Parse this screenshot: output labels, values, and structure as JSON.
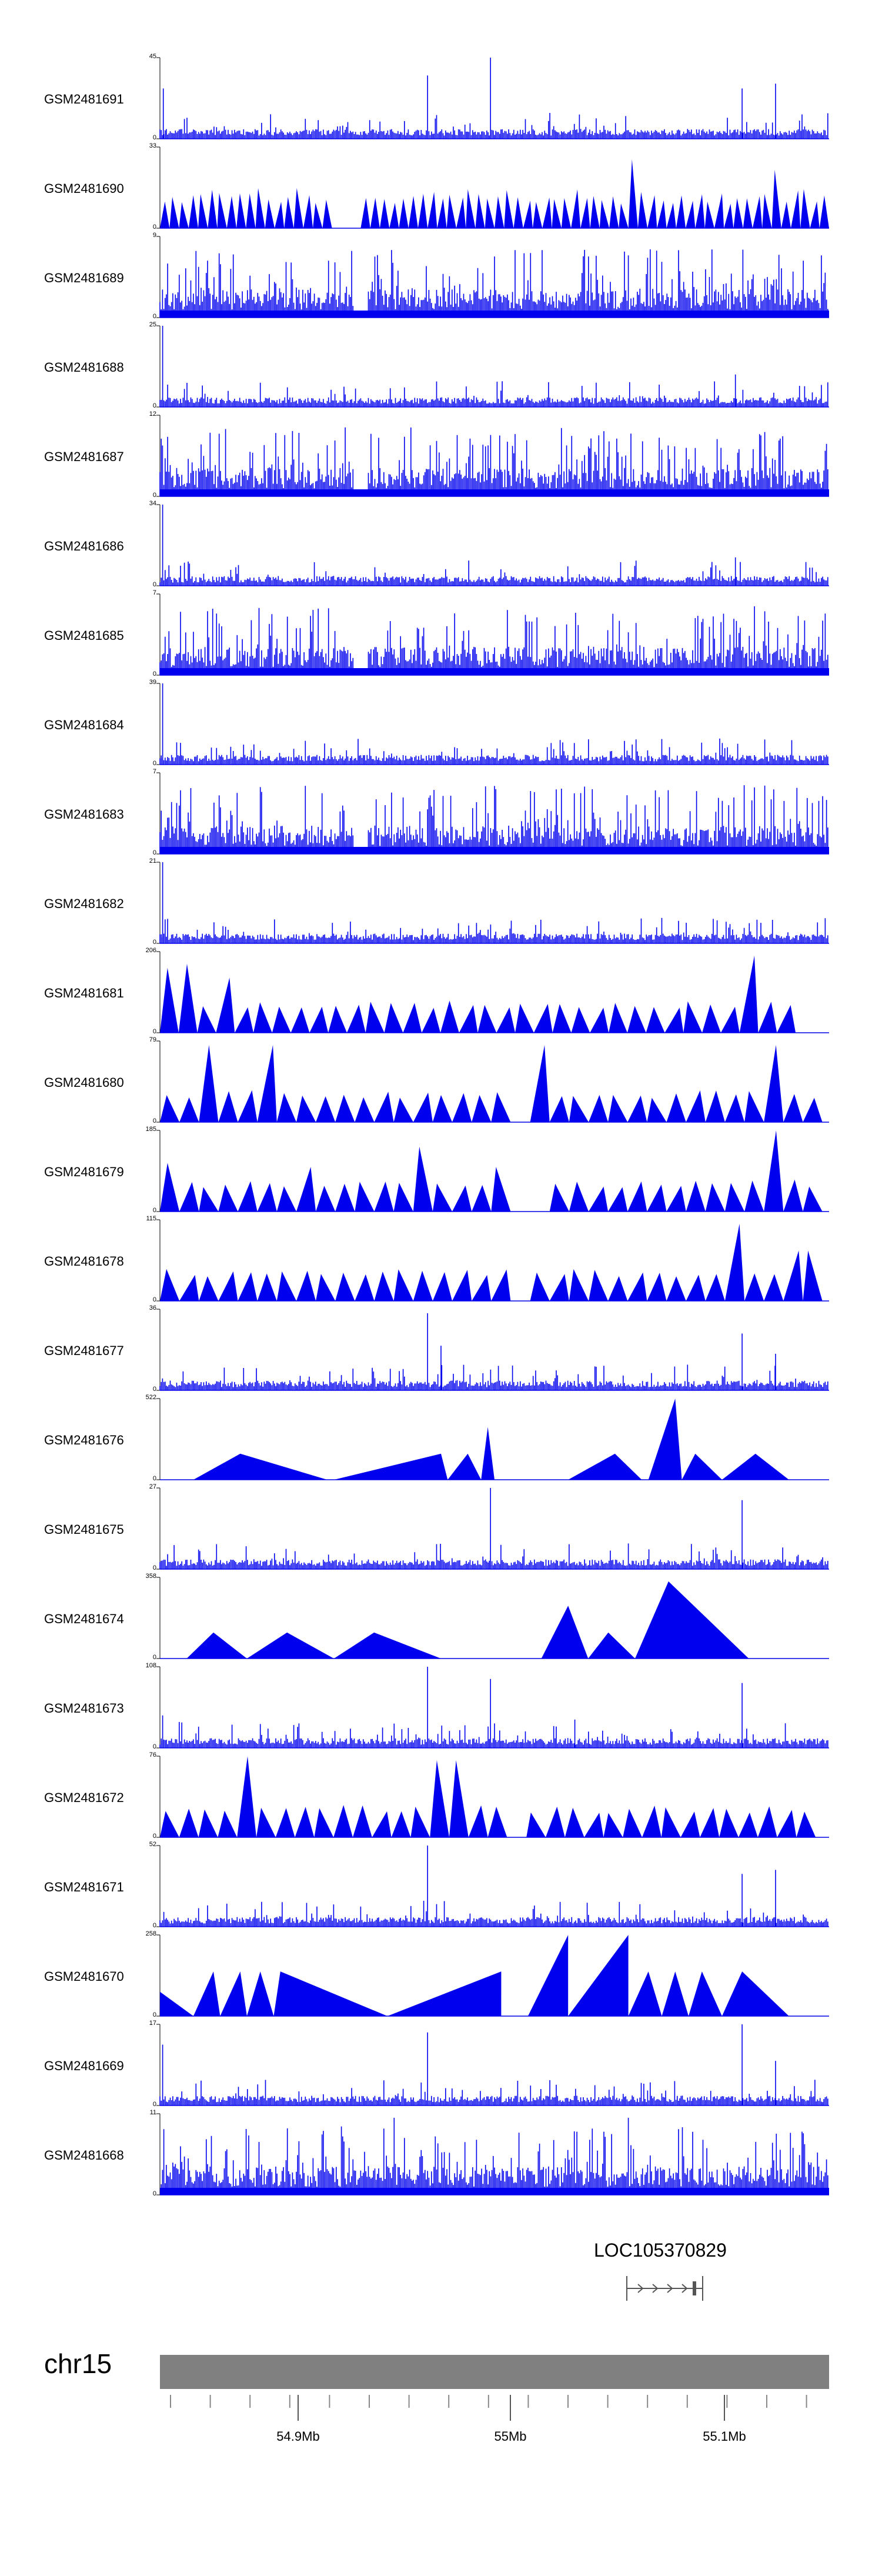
{
  "colors": {
    "signal": "#0000ee",
    "ideogram": "#808080",
    "axis": "#000000"
  },
  "tracks": [
    {
      "id": "GSM2481691",
      "label": "GSM2481691",
      "ymax": "45",
      "ymin": "0",
      "pattern": "sparse",
      "seed": 11,
      "peaks": [
        [
          0.005,
          0.62
        ],
        [
          0.4,
          0.78
        ],
        [
          0.494,
          1.0
        ],
        [
          0.87,
          0.62
        ],
        [
          0.92,
          0.68
        ]
      ]
    },
    {
      "id": "GSM2481690",
      "label": "GSM2481690",
      "ymax": "33",
      "ymin": "0",
      "pattern": "triangles-dense",
      "seed": 12,
      "gap": [
        0.26,
        0.3
      ],
      "peaks": [
        [
          0.7,
          0.85
        ],
        [
          0.92,
          0.72
        ]
      ]
    },
    {
      "id": "GSM2481689",
      "label": "GSM2481689",
      "ymax": "9",
      "ymin": "0",
      "pattern": "dense",
      "seed": 13,
      "gap": [
        0.29,
        0.31
      ]
    },
    {
      "id": "GSM2481688",
      "label": "GSM2481688",
      "ymax": "25",
      "ymin": "0",
      "pattern": "sparse",
      "seed": 14,
      "peaks": [
        [
          0.004,
          1.0
        ],
        [
          0.86,
          0.4
        ]
      ]
    },
    {
      "id": "GSM2481687",
      "label": "GSM2481687",
      "ymax": "12",
      "ymin": "0",
      "pattern": "dense",
      "seed": 15,
      "gap": [
        0.29,
        0.31
      ]
    },
    {
      "id": "GSM2481686",
      "label": "GSM2481686",
      "ymax": "34",
      "ymin": "0",
      "pattern": "sparse",
      "seed": 16,
      "peaks": [
        [
          0.004,
          1.0
        ],
        [
          0.86,
          0.35
        ]
      ]
    },
    {
      "id": "GSM2481685",
      "label": "GSM2481685",
      "ymax": "7",
      "ymin": "0",
      "pattern": "dense",
      "seed": 17,
      "gap": [
        0.29,
        0.31
      ]
    },
    {
      "id": "GSM2481684",
      "label": "GSM2481684",
      "ymax": "39",
      "ymin": "0",
      "pattern": "sparse",
      "seed": 18,
      "peaks": [
        [
          0.004,
          1.0
        ]
      ]
    },
    {
      "id": "GSM2481683",
      "label": "GSM2481683",
      "ymax": "7",
      "ymin": "0",
      "pattern": "dense",
      "seed": 19,
      "gap": [
        0.29,
        0.31
      ]
    },
    {
      "id": "GSM2481682",
      "label": "GSM2481682",
      "ymax": "21",
      "ymin": "0",
      "pattern": "sparse",
      "seed": 20,
      "peaks": [
        [
          0.004,
          1.0
        ]
      ]
    },
    {
      "id": "GSM2481681",
      "label": "GSM2481681",
      "ymax": "206",
      "ymin": "0",
      "pattern": "triangles",
      "seed": 21,
      "range": [
        0.0,
        0.95
      ],
      "gap": [
        0.52,
        0.54
      ],
      "peaks": [
        [
          0.004,
          0.8
        ],
        [
          0.05,
          0.85
        ],
        [
          0.1,
          0.68
        ],
        [
          0.87,
          0.95
        ]
      ]
    },
    {
      "id": "GSM2481680",
      "label": "GSM2481680",
      "ymax": "79",
      "ymin": "0",
      "pattern": "triangles",
      "seed": 22,
      "range": [
        0.0,
        0.99
      ],
      "gap": [
        0.53,
        0.54
      ],
      "peaks": [
        [
          0.06,
          0.95
        ],
        [
          0.16,
          0.95
        ],
        [
          0.57,
          0.95
        ],
        [
          0.93,
          0.95
        ]
      ]
    },
    {
      "id": "GSM2481679",
      "label": "GSM2481679",
      "ymax": "185",
      "ymin": "0",
      "pattern": "triangles",
      "seed": 23,
      "range": [
        0.0,
        0.99
      ],
      "gap": [
        0.51,
        0.58
      ],
      "peaks": [
        [
          0.02,
          0.6
        ],
        [
          0.23,
          0.55
        ],
        [
          0.4,
          0.8
        ],
        [
          0.5,
          0.55
        ],
        [
          0.93,
          1.0
        ]
      ]
    },
    {
      "id": "GSM2481678",
      "label": "GSM2481678",
      "ymax": "115",
      "ymin": "0",
      "pattern": "triangles",
      "seed": 24,
      "range": [
        0.0,
        0.99
      ],
      "gap": [
        0.51,
        0.55
      ],
      "peaks": [
        [
          0.86,
          0.95
        ],
        [
          0.95,
          0.62
        ],
        [
          0.98,
          0.62
        ]
      ]
    },
    {
      "id": "GSM2481677",
      "label": "GSM2481677",
      "ymax": "36",
      "ymin": "0",
      "pattern": "sparse",
      "seed": 25,
      "peaks": [
        [
          0.4,
          0.95
        ],
        [
          0.42,
          0.55
        ],
        [
          0.87,
          0.7
        ],
        [
          0.92,
          0.45
        ]
      ]
    },
    {
      "id": "GSM2481676",
      "label": "GSM2481676",
      "ymax": "522",
      "ymin": "0",
      "pattern": "blocks",
      "seed": 26,
      "tris": [
        [
          0.05,
          0.25,
          0.12,
          0.32
        ],
        [
          0.26,
          0.43,
          0.42,
          0.32
        ],
        [
          0.43,
          0.48,
          0.46,
          0.32
        ],
        [
          0.48,
          0.5,
          0.49,
          0.65
        ],
        [
          0.61,
          0.72,
          0.68,
          0.32
        ],
        [
          0.73,
          0.78,
          0.77,
          1.0
        ],
        [
          0.78,
          0.84,
          0.8,
          0.32
        ],
        [
          0.84,
          0.94,
          0.89,
          0.32
        ]
      ]
    },
    {
      "id": "GSM2481675",
      "label": "GSM2481675",
      "ymax": "27",
      "ymin": "0",
      "pattern": "sparse",
      "seed": 27,
      "peaks": [
        [
          0.494,
          1.0
        ],
        [
          0.87,
          0.85
        ]
      ]
    },
    {
      "id": "GSM2481674",
      "label": "GSM2481674",
      "ymax": "358",
      "ymin": "0",
      "pattern": "blocks",
      "seed": 28,
      "tris": [
        [
          0.04,
          0.13,
          0.08,
          0.32
        ],
        [
          0.13,
          0.26,
          0.19,
          0.32
        ],
        [
          0.26,
          0.42,
          0.32,
          0.32
        ],
        [
          0.57,
          0.64,
          0.61,
          0.65
        ],
        [
          0.64,
          0.71,
          0.67,
          0.32
        ],
        [
          0.71,
          0.88,
          0.76,
          0.95
        ]
      ]
    },
    {
      "id": "GSM2481673",
      "label": "GSM2481673",
      "ymax": "108",
      "ymin": "0",
      "pattern": "sparse",
      "seed": 29,
      "peaks": [
        [
          0.004,
          0.4
        ],
        [
          0.4,
          1.0
        ],
        [
          0.494,
          0.85
        ],
        [
          0.62,
          0.35
        ],
        [
          0.87,
          0.8
        ]
      ]
    },
    {
      "id": "GSM2481672",
      "label": "GSM2481672",
      "ymax": "76",
      "ymin": "0",
      "pattern": "triangles",
      "seed": 30,
      "range": [
        0.0,
        0.98
      ],
      "gap": [
        0.52,
        0.54
      ],
      "peaks": [
        [
          0.13,
          1.0
        ],
        [
          0.41,
          0.95
        ],
        [
          0.46,
          0.95
        ]
      ]
    },
    {
      "id": "GSM2481671",
      "label": "GSM2481671",
      "ymax": "52",
      "ymin": "0",
      "pattern": "sparse",
      "seed": 31,
      "peaks": [
        [
          0.4,
          1.0
        ],
        [
          0.87,
          0.65
        ],
        [
          0.92,
          0.7
        ]
      ]
    },
    {
      "id": "GSM2481670",
      "label": "GSM2481670",
      "ymax": "258",
      "ymin": "0",
      "pattern": "blocks",
      "seed": 32,
      "tris": [
        [
          0.0,
          0.05,
          0.0,
          0.3
        ],
        [
          0.05,
          0.09,
          0.08,
          0.55
        ],
        [
          0.09,
          0.13,
          0.12,
          0.55
        ],
        [
          0.13,
          0.17,
          0.15,
          0.55
        ],
        [
          0.17,
          0.34,
          0.18,
          0.55
        ],
        [
          0.34,
          0.51,
          0.51,
          0.55
        ],
        [
          0.55,
          0.61,
          0.61,
          1.0
        ],
        [
          0.61,
          0.7,
          0.7,
          1.0
        ],
        [
          0.7,
          0.75,
          0.73,
          0.55
        ],
        [
          0.75,
          0.79,
          0.77,
          0.55
        ],
        [
          0.79,
          0.84,
          0.81,
          0.55
        ],
        [
          0.84,
          0.94,
          0.87,
          0.55
        ]
      ]
    },
    {
      "id": "GSM2481669",
      "label": "GSM2481669",
      "ymax": "17",
      "ymin": "0",
      "pattern": "sparse",
      "seed": 33,
      "peaks": [
        [
          0.004,
          0.75
        ],
        [
          0.4,
          0.9
        ],
        [
          0.87,
          1.0
        ],
        [
          0.92,
          0.55
        ]
      ]
    },
    {
      "id": "GSM2481668",
      "label": "GSM2481668",
      "ymax": "11",
      "ymin": "0",
      "pattern": "dense",
      "seed": 34,
      "gap": [
        0.0,
        0.0
      ],
      "peaks": [
        [
          0.35,
          0.95
        ],
        [
          0.7,
          0.95
        ]
      ]
    }
  ],
  "gene": {
    "name": "LOC105370829"
  },
  "chromosome": {
    "label": "chr15"
  },
  "axis": {
    "ticks": [
      {
        "label": "54.9Mb",
        "show_label": true
      },
      {
        "label": "55Mb",
        "show_label": true
      },
      {
        "label": "55.1Mb",
        "show_label": true
      }
    ]
  },
  "chart_data": {
    "type": "area",
    "title": "",
    "xlabel": "",
    "ylabel": "",
    "x_ticks": [
      "54.9Mb",
      "55Mb",
      "55.1Mb"
    ],
    "chromosome": "chr15",
    "gene_annotation": "LOC105370829",
    "series": [
      {
        "name": "GSM2481691",
        "ylim": [
          0,
          45
        ]
      },
      {
        "name": "GSM2481690",
        "ylim": [
          0,
          33
        ]
      },
      {
        "name": "GSM2481689",
        "ylim": [
          0,
          9
        ]
      },
      {
        "name": "GSM2481688",
        "ylim": [
          0,
          25
        ]
      },
      {
        "name": "GSM2481687",
        "ylim": [
          0,
          12
        ]
      },
      {
        "name": "GSM2481686",
        "ylim": [
          0,
          34
        ]
      },
      {
        "name": "GSM2481685",
        "ylim": [
          0,
          7
        ]
      },
      {
        "name": "GSM2481684",
        "ylim": [
          0,
          39
        ]
      },
      {
        "name": "GSM2481683",
        "ylim": [
          0,
          7
        ]
      },
      {
        "name": "GSM2481682",
        "ylim": [
          0,
          21
        ]
      },
      {
        "name": "GSM2481681",
        "ylim": [
          0,
          206
        ]
      },
      {
        "name": "GSM2481680",
        "ylim": [
          0,
          79
        ]
      },
      {
        "name": "GSM2481679",
        "ylim": [
          0,
          185
        ]
      },
      {
        "name": "GSM2481678",
        "ylim": [
          0,
          115
        ]
      },
      {
        "name": "GSM2481677",
        "ylim": [
          0,
          36
        ]
      },
      {
        "name": "GSM2481676",
        "ylim": [
          0,
          522
        ]
      },
      {
        "name": "GSM2481675",
        "ylim": [
          0,
          27
        ]
      },
      {
        "name": "GSM2481674",
        "ylim": [
          0,
          358
        ]
      },
      {
        "name": "GSM2481673",
        "ylim": [
          0,
          108
        ]
      },
      {
        "name": "GSM2481672",
        "ylim": [
          0,
          76
        ]
      },
      {
        "name": "GSM2481671",
        "ylim": [
          0,
          52
        ]
      },
      {
        "name": "GSM2481670",
        "ylim": [
          0,
          258
        ]
      },
      {
        "name": "GSM2481669",
        "ylim": [
          0,
          17
        ]
      },
      {
        "name": "GSM2481668",
        "ylim": [
          0,
          11
        ]
      }
    ]
  }
}
